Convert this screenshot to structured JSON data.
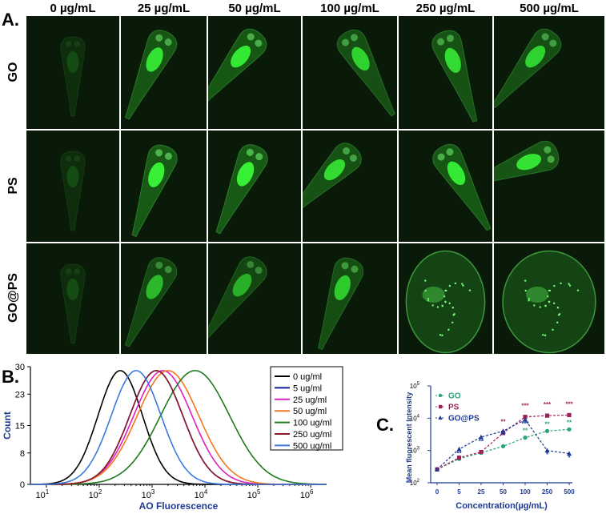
{
  "panel_a": {
    "label": "A.",
    "columns": [
      "0 µg/mL",
      "25 µg/mL",
      "50 µg/mL",
      "100 µg/mL",
      "250 µg/mL",
      "500 µg/mL"
    ],
    "rows": [
      "GO",
      "PS",
      "GO@PS"
    ]
  },
  "panel_b": {
    "label": "B."
  },
  "panel_c": {
    "label": "C."
  },
  "colors": {
    "image_bg": "#0a1a08",
    "fluor": "#3aff3a",
    "axis_text": "#1f3a93"
  },
  "chart_data": [
    {
      "type": "area",
      "id": "flow-histogram",
      "xlabel": "AO Fluorescence",
      "ylabel": "Count",
      "xscale": "log",
      "xlim": [
        5,
        2000000
      ],
      "ylim": [
        0,
        30
      ],
      "yticks": [
        0,
        8,
        15,
        23,
        30
      ],
      "xticks": [
        10,
        100,
        1000,
        10000,
        100000,
        1000000
      ],
      "xtick_labels": [
        "10^1",
        "10^2",
        "10^3",
        "10^4",
        "10^5",
        "10^6"
      ],
      "legend_placement": "top-right",
      "series": [
        {
          "name": "0 ug/ml",
          "color": "#000000",
          "peak_x": 250,
          "peak_y": 29,
          "width": 0.42
        },
        {
          "name": "5 ug/ml",
          "color": "#1a1aa0",
          "peak_x": 1200,
          "peak_y": 29,
          "width": 0.5
        },
        {
          "name": "25 ug/ml",
          "color": "#e020c0",
          "peak_x": 1600,
          "peak_y": 29,
          "width": 0.55
        },
        {
          "name": "50 ug/ml",
          "color": "#f07820",
          "peak_x": 2000,
          "peak_y": 29,
          "width": 0.58
        },
        {
          "name": "100 ug/ml",
          "color": "#1e7a1e",
          "peak_x": 6500,
          "peak_y": 29,
          "width": 0.65
        },
        {
          "name": "250 ug/ml",
          "color": "#8b1a2a",
          "peak_x": 1200,
          "peak_y": 29,
          "width": 0.5
        },
        {
          "name": "500 ug/ml",
          "color": "#3a7ae0",
          "peak_x": 500,
          "peak_y": 29,
          "width": 0.47
        }
      ]
    },
    {
      "type": "line",
      "id": "mean-fluorescence",
      "xlabel": "Concentration(µg/mL)",
      "ylabel": "Mean fluorescent Intensity",
      "yscale": "log",
      "ylim": [
        100,
        100000
      ],
      "yticks": [
        100,
        1000,
        10000,
        100000
      ],
      "ytick_labels": [
        "10^2",
        "10^3",
        "10^4",
        "10^5"
      ],
      "categories": [
        "0",
        "5",
        "25",
        "50",
        "100",
        "250",
        "500"
      ],
      "legend_placement": "top-left",
      "series": [
        {
          "name": "GO",
          "color": "#2aa37a",
          "marker": "circle",
          "values": [
            260,
            550,
            850,
            1350,
            2500,
            4000,
            4500
          ],
          "annotations": [
            "",
            "",
            "",
            "",
            "**",
            "**",
            "**"
          ]
        },
        {
          "name": "PS",
          "color": "#a0205a",
          "marker": "square",
          "values": [
            260,
            600,
            900,
            3500,
            11000,
            12000,
            12500
          ],
          "annotations": [
            "",
            "",
            "",
            "**",
            "***",
            "***",
            "***"
          ]
        },
        {
          "name": "GO@PS",
          "color": "#1f3a93",
          "marker": "triangle",
          "values": [
            260,
            1100,
            2600,
            4000,
            9000,
            1000,
            800
          ],
          "annotations": [
            "",
            "**",
            "**",
            "**",
            "***",
            "*",
            "*"
          ]
        }
      ]
    }
  ]
}
